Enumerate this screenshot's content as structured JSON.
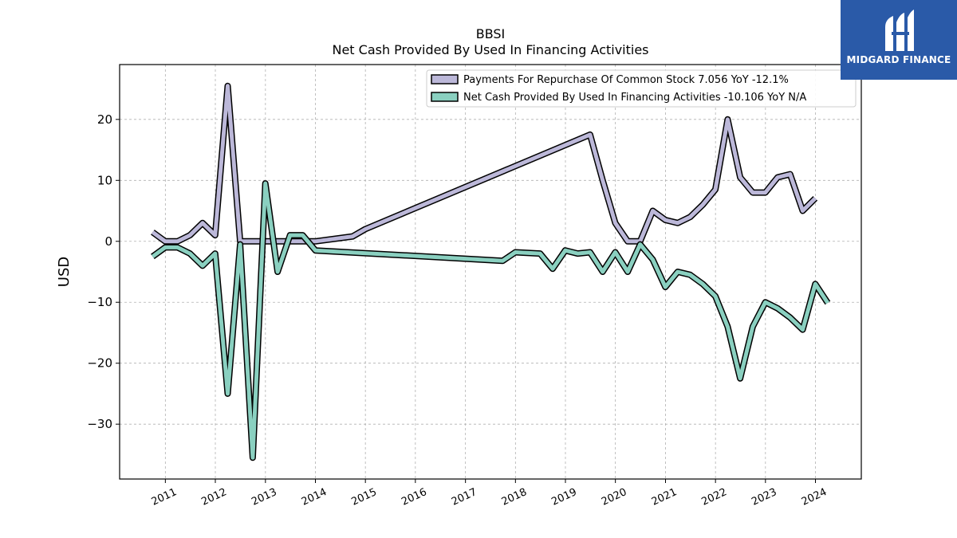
{
  "brand": {
    "name": "MIDGARD FINANCE",
    "logo_icon": "midgard-logo-icon",
    "bg_color": "#2a5aa8"
  },
  "chart_data": {
    "type": "line",
    "title": "BBSI",
    "subtitle": "Net Cash Provided By Used In Financing Activities",
    "ylabel": "USD",
    "xlabel": "",
    "ylim": [
      -39,
      29
    ],
    "xlim": [
      "2010-02-01",
      "2024-12-01"
    ],
    "yticks": [
      20,
      10,
      0,
      -10,
      -20,
      -30
    ],
    "ytick_labels": [
      "20",
      "10",
      "0",
      "−10",
      "−20",
      "−30"
    ],
    "xticks": [
      "2011-01-01",
      "2012-01-01",
      "2013-01-01",
      "2014-01-01",
      "2015-01-01",
      "2016-01-01",
      "2017-01-01",
      "2018-01-01",
      "2019-01-01",
      "2020-01-01",
      "2021-01-01",
      "2022-01-01",
      "2023-01-01",
      "2024-01-01"
    ],
    "xtick_labels": [
      "2011",
      "2012",
      "2013",
      "2014",
      "2015",
      "2016",
      "2017",
      "2018",
      "2019",
      "2020",
      "2021",
      "2022",
      "2023",
      "2024"
    ],
    "grid": true,
    "legend_position": "top-right",
    "series": [
      {
        "name": "Payments For Repurchase Of Common Stock",
        "legend_label": "Payments For Repurchase Of Common Stock  7.056 YoY -12.1%",
        "color": "#bcb8d9",
        "points": [
          [
            "2010-09-30",
            1.5
          ],
          [
            "2010-12-31",
            0.0
          ],
          [
            "2011-03-31",
            0.0
          ],
          [
            "2011-06-30",
            1.0
          ],
          [
            "2011-09-30",
            3.0
          ],
          [
            "2011-12-31",
            1.0
          ],
          [
            "2012-03-31",
            25.5
          ],
          [
            "2012-06-30",
            0.0
          ],
          [
            "2012-09-30",
            0.0
          ],
          [
            "2012-12-31",
            0.0
          ],
          [
            "2014-01-01",
            0.0
          ],
          [
            "2014-09-30",
            0.8
          ],
          [
            "2014-12-31",
            2.0
          ],
          [
            "2019-06-30",
            17.5
          ],
          [
            "2019-09-30",
            10.0
          ],
          [
            "2019-12-31",
            3.0
          ],
          [
            "2020-03-31",
            0.0
          ],
          [
            "2020-06-30",
            0.0
          ],
          [
            "2020-09-30",
            5.0
          ],
          [
            "2020-12-31",
            3.5
          ],
          [
            "2021-03-31",
            3.0
          ],
          [
            "2021-06-30",
            4.0
          ],
          [
            "2021-09-30",
            6.0
          ],
          [
            "2021-12-31",
            8.5
          ],
          [
            "2022-03-31",
            20.0
          ],
          [
            "2022-06-30",
            10.5
          ],
          [
            "2022-09-30",
            8.0
          ],
          [
            "2022-12-31",
            8.0
          ],
          [
            "2023-03-31",
            10.5
          ],
          [
            "2023-06-30",
            11.0
          ],
          [
            "2023-09-30",
            5.0
          ],
          [
            "2023-12-31",
            7.056
          ]
        ]
      },
      {
        "name": "Net Cash Provided By Used In Financing Activities",
        "legend_label": "Net Cash Provided By Used In Financing Activities  -10.106 YoY N/A",
        "color": "#8ad0c0",
        "points": [
          [
            "2010-09-30",
            -2.5
          ],
          [
            "2010-12-31",
            -1.0
          ],
          [
            "2011-03-31",
            -1.0
          ],
          [
            "2011-06-30",
            -2.0
          ],
          [
            "2011-09-30",
            -4.0
          ],
          [
            "2011-12-31",
            -2.0
          ],
          [
            "2012-03-31",
            -25.0
          ],
          [
            "2012-06-30",
            -0.5
          ],
          [
            "2012-09-30",
            -35.5
          ],
          [
            "2012-12-31",
            9.5
          ],
          [
            "2013-03-31",
            -5.0
          ],
          [
            "2013-06-30",
            1.0
          ],
          [
            "2013-09-30",
            1.0
          ],
          [
            "2014-01-01",
            -1.5
          ],
          [
            "2017-09-30",
            -3.2
          ],
          [
            "2017-12-31",
            -1.8
          ],
          [
            "2018-06-30",
            -2.0
          ],
          [
            "2018-09-30",
            -4.5
          ],
          [
            "2018-12-31",
            -1.5
          ],
          [
            "2019-03-31",
            -2.0
          ],
          [
            "2019-06-30",
            -1.8
          ],
          [
            "2019-09-30",
            -5.0
          ],
          [
            "2019-12-31",
            -1.8
          ],
          [
            "2020-03-31",
            -5.0
          ],
          [
            "2020-06-30",
            -0.5
          ],
          [
            "2020-09-30",
            -3.0
          ],
          [
            "2020-12-31",
            -7.5
          ],
          [
            "2021-03-31",
            -5.0
          ],
          [
            "2021-06-30",
            -5.5
          ],
          [
            "2021-09-30",
            -7.0
          ],
          [
            "2021-12-31",
            -9.0
          ],
          [
            "2022-03-31",
            -14.0
          ],
          [
            "2022-06-30",
            -22.5
          ],
          [
            "2022-09-30",
            -14.0
          ],
          [
            "2022-12-31",
            -10.0
          ],
          [
            "2023-03-31",
            -11.0
          ],
          [
            "2023-06-30",
            -12.5
          ],
          [
            "2023-09-30",
            -14.5
          ],
          [
            "2023-12-31",
            -7.0
          ],
          [
            "2024-03-31",
            -10.106
          ]
        ]
      }
    ]
  }
}
